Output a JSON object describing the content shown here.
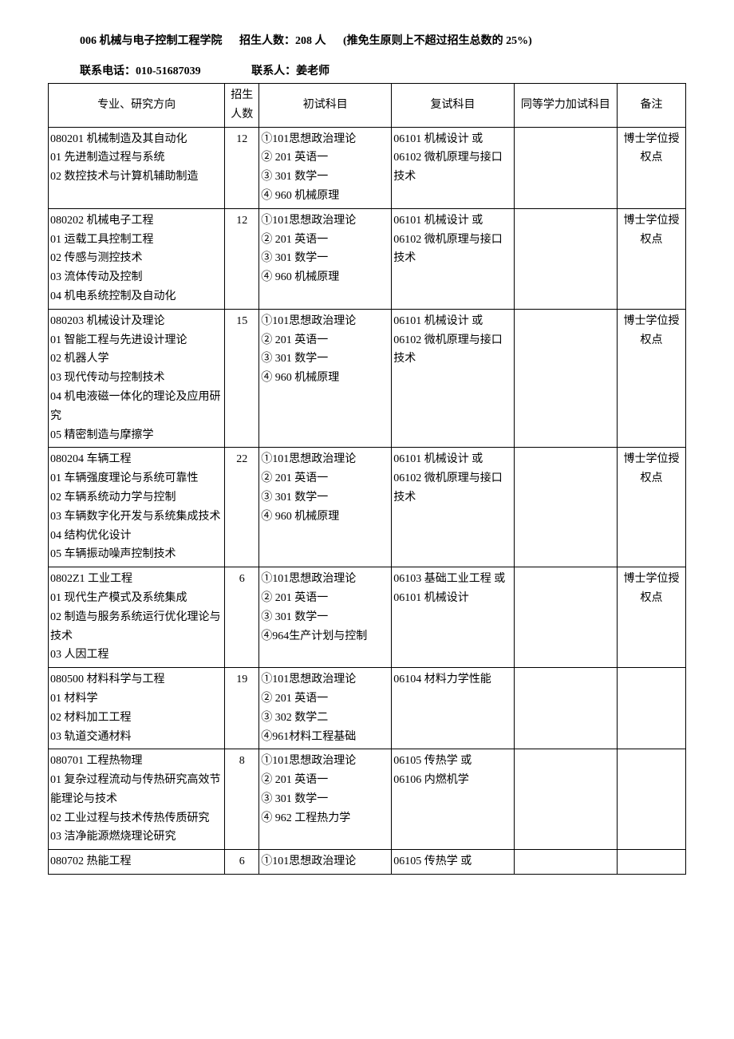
{
  "header": {
    "dept_code_name": "006 机械与电子控制工程学院",
    "enroll_label": "招生人数：208 人",
    "enroll_note": "(推免生原则上不超过招生总数的 25%)"
  },
  "contact": {
    "phone_label": "联系电话：",
    "phone_value": "010-51687039",
    "person_label": "联系人：",
    "person_value": "姜老师"
  },
  "columns": {
    "major": "专业、研究方向",
    "count": "招生人数",
    "prelim": "初试科目",
    "retest": "复试科目",
    "extra": "同等学力加试科目",
    "note": "备注"
  },
  "rows": [
    {
      "major": "080201 机械制造及其自动化\n01 先进制造过程与系统\n02 数控技术与计算机辅助制造",
      "count": "12",
      "prelim": "①101思想政治理论\n② 201 英语一\n③ 301 数学一\n④ 960 机械原理",
      "retest": "06101 机械设计 或\n06102 微机原理与接口技术",
      "extra": "",
      "note": "博士学位授权点"
    },
    {
      "major": "080202 机械电子工程\n01 运载工具控制工程\n02 传感与测控技术\n03 流体传动及控制\n04 机电系统控制及自动化",
      "count": "12",
      "prelim": "①101思想政治理论\n② 201 英语一\n③ 301 数学一\n④ 960 机械原理",
      "retest": "06101 机械设计 或\n06102 微机原理与接口技术",
      "extra": "",
      "note": "博士学位授权点"
    },
    {
      "major": "080203 机械设计及理论\n01 智能工程与先进设计理论\n02 机器人学\n03 现代传动与控制技术\n04 机电液磁一体化的理论及应用研究\n05 精密制造与摩擦学",
      "count": "15",
      "prelim": "①101思想政治理论\n② 201 英语一\n③ 301 数学一\n④ 960 机械原理",
      "retest": "06101 机械设计 或\n06102 微机原理与接口技术",
      "extra": "",
      "note": "博士学位授权点"
    },
    {
      "major": "080204 车辆工程\n01 车辆强度理论与系统可靠性\n02 车辆系统动力学与控制\n03 车辆数字化开发与系统集成技术\n04 结构优化设计\n05 车辆振动噪声控制技术",
      "count": "22",
      "prelim": "①101思想政治理论\n② 201 英语一\n③ 301 数学一\n④ 960 机械原理",
      "retest": "06101 机械设计 或\n06102 微机原理与接口技术",
      "extra": "",
      "note": "博士学位授权点"
    },
    {
      "major": "0802Z1 工业工程\n01 现代生产模式及系统集成\n02 制造与服务系统运行优化理论与技术\n03 人因工程",
      "count": "6",
      "prelim": "①101思想政治理论\n② 201 英语一\n③ 301 数学一\n④964生产计划与控制",
      "retest": "06103 基础工业工程 或 06101 机械设计",
      "extra": "",
      "note": "博士学位授权点"
    },
    {
      "major": "080500 材料科学与工程\n01 材料学\n02 材料加工工程\n03 轨道交通材料",
      "count": "19",
      "prelim": "①101思想政治理论\n② 201 英语一\n③ 302 数学二\n④961材料工程基础",
      "retest": "06104 材料力学性能",
      "extra": "",
      "note": ""
    },
    {
      "major": "080701 工程热物理\n01 复杂过程流动与传热研究高效节能理论与技术\n02 工业过程与技术传热传质研究\n03 洁净能源燃烧理论研究",
      "count": "8",
      "prelim": "①101思想政治理论\n② 201 英语一\n③ 301 数学一\n④ 962 工程热力学",
      "retest": "06105 传热学 或\n06106 内燃机学",
      "extra": "",
      "note": ""
    },
    {
      "major": "080702 热能工程",
      "count": "6",
      "prelim": "①101思想政治理论",
      "retest": "06105 传热学 或",
      "extra": "",
      "note": ""
    }
  ]
}
